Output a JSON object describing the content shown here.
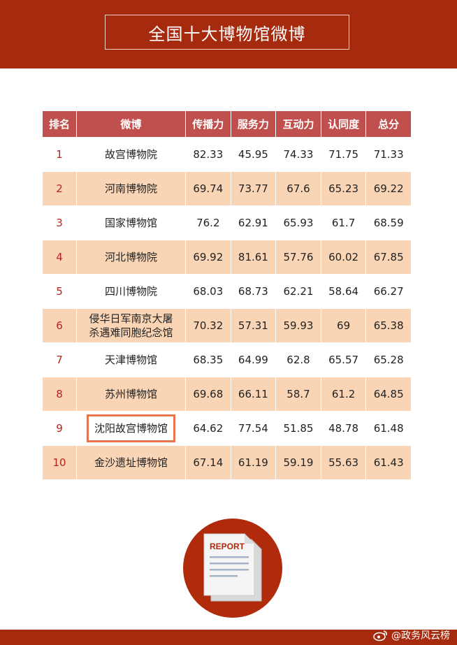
{
  "header": {
    "title": "全国十大博物馆微博"
  },
  "table": {
    "columns": [
      "排名",
      "微博",
      "传播力",
      "服务力",
      "互动力",
      "认同度",
      "总分"
    ],
    "rows": [
      {
        "rank": "1",
        "name": "故宫博物院",
        "spread": "82.33",
        "service": "45.95",
        "interact": "74.33",
        "recognition": "71.75",
        "total": "71.33"
      },
      {
        "rank": "2",
        "name": "河南博物院",
        "spread": "69.74",
        "service": "73.77",
        "interact": "67.6",
        "recognition": "65.23",
        "total": "69.22"
      },
      {
        "rank": "3",
        "name": "国家博物馆",
        "spread": "76.2",
        "service": "62.91",
        "interact": "65.93",
        "recognition": "61.7",
        "total": "68.59"
      },
      {
        "rank": "4",
        "name": "河北博物院",
        "spread": "69.92",
        "service": "81.61",
        "interact": "57.76",
        "recognition": "60.02",
        "total": "67.85"
      },
      {
        "rank": "5",
        "name": "四川博物院",
        "spread": "68.03",
        "service": "68.73",
        "interact": "62.21",
        "recognition": "58.64",
        "total": "66.27"
      },
      {
        "rank": "6",
        "name_line1": "侵华日军南京大屠",
        "name_line2": "杀遇难同胞纪念馆",
        "spread": "70.32",
        "service": "57.31",
        "interact": "59.93",
        "recognition": "69",
        "total": "65.38"
      },
      {
        "rank": "7",
        "name": "天津博物馆",
        "spread": "68.35",
        "service": "64.99",
        "interact": "62.8",
        "recognition": "65.57",
        "total": "65.28"
      },
      {
        "rank": "8",
        "name": "苏州博物馆",
        "spread": "69.68",
        "service": "66.11",
        "interact": "58.7",
        "recognition": "61.2",
        "total": "64.85"
      },
      {
        "rank": "9",
        "name": "沈阳故宫博物馆",
        "spread": "64.62",
        "service": "77.54",
        "interact": "51.85",
        "recognition": "48.78",
        "total": "61.48"
      },
      {
        "rank": "10",
        "name": "金沙遗址博物馆",
        "spread": "67.14",
        "service": "61.19",
        "interact": "59.19",
        "recognition": "55.63",
        "total": "61.43"
      }
    ]
  },
  "report_icon": {
    "label": "REPORT"
  },
  "footer": {
    "watermark": "@政务风云榜"
  },
  "colors": {
    "header_bg": "#a52a0e",
    "table_header_bg": "#c0504d",
    "row_alt_bg": "#fad5b5",
    "rank_text": "#b6231b",
    "highlight_border": "#e8744e"
  }
}
